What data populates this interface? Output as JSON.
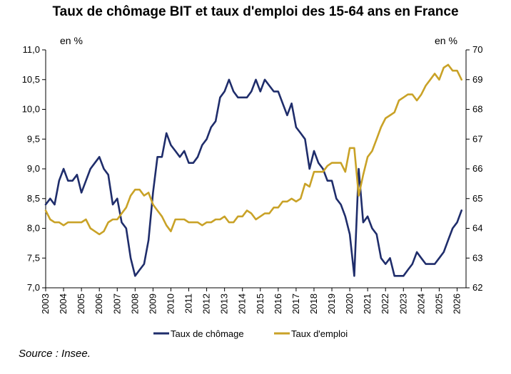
{
  "title": "Taux de chômage BIT et taux d'emploi des 15-64 ans en France",
  "source": "Source : Insee.",
  "chart_data": {
    "type": "line",
    "title": "Taux de chômage BIT et taux d'emploi des 15-64 ans en France",
    "left_axis": {
      "unit_label": "en %",
      "ylim": [
        7.0,
        11.0
      ],
      "ticks": [
        "7,0",
        "7,5",
        "8,0",
        "8,5",
        "9,0",
        "9,5",
        "10,0",
        "10,5",
        "11,0"
      ],
      "tick_values": [
        7.0,
        7.5,
        8.0,
        8.5,
        9.0,
        9.5,
        10.0,
        10.5,
        11.0
      ]
    },
    "right_axis": {
      "unit_label": "en %",
      "ylim": [
        62,
        70
      ],
      "ticks": [
        "62",
        "63",
        "64",
        "65",
        "66",
        "67",
        "68",
        "69",
        "70"
      ],
      "tick_values": [
        62,
        63,
        64,
        65,
        66,
        67,
        68,
        69,
        70
      ]
    },
    "x_axis": {
      "xlim": [
        2003,
        2026.5
      ],
      "ticks": [
        "2003",
        "2004",
        "2005",
        "2006",
        "2007",
        "2008",
        "2009",
        "2010",
        "2011",
        "2012",
        "2013",
        "2014",
        "2015",
        "2016",
        "2017",
        "2018",
        "2019",
        "2020",
        "2021",
        "2022",
        "2023",
        "2024",
        "2025",
        "2026"
      ],
      "tick_values": [
        2003,
        2004,
        2005,
        2006,
        2007,
        2008,
        2009,
        2010,
        2011,
        2012,
        2013,
        2014,
        2015,
        2016,
        2017,
        2018,
        2019,
        2020,
        2021,
        2022,
        2023,
        2024,
        2025,
        2026
      ]
    },
    "legend_position": "bottom",
    "grid": false,
    "series": [
      {
        "name": "Taux de chômage",
        "axis": "left",
        "color": "#1F2D6B",
        "x": [
          2003.0,
          2003.25,
          2003.5,
          2003.75,
          2004.0,
          2004.25,
          2004.5,
          2004.75,
          2005.0,
          2005.25,
          2005.5,
          2005.75,
          2006.0,
          2006.25,
          2006.5,
          2006.75,
          2007.0,
          2007.25,
          2007.5,
          2007.75,
          2008.0,
          2008.25,
          2008.5,
          2008.75,
          2009.0,
          2009.25,
          2009.5,
          2009.75,
          2010.0,
          2010.25,
          2010.5,
          2010.75,
          2011.0,
          2011.25,
          2011.5,
          2011.75,
          2012.0,
          2012.25,
          2012.5,
          2012.75,
          2013.0,
          2013.25,
          2013.5,
          2013.75,
          2014.0,
          2014.25,
          2014.5,
          2014.75,
          2015.0,
          2015.25,
          2015.5,
          2015.75,
          2016.0,
          2016.25,
          2016.5,
          2016.75,
          2017.0,
          2017.25,
          2017.5,
          2017.75,
          2018.0,
          2018.25,
          2018.5,
          2018.75,
          2019.0,
          2019.25,
          2019.5,
          2019.75,
          2020.0,
          2020.25,
          2020.5,
          2020.75,
          2021.0,
          2021.25,
          2021.5,
          2021.75,
          2022.0,
          2022.25,
          2022.5,
          2022.75,
          2023.0,
          2023.25,
          2023.5,
          2023.75,
          2024.0,
          2024.25,
          2024.5,
          2024.75,
          2025.0,
          2025.25,
          2025.5,
          2025.75,
          2026.0,
          2026.25
        ],
        "values": [
          8.4,
          8.5,
          8.4,
          8.8,
          9.0,
          8.8,
          8.8,
          8.9,
          8.6,
          8.8,
          9.0,
          9.1,
          9.2,
          9.0,
          8.9,
          8.4,
          8.5,
          8.1,
          8.0,
          7.5,
          7.2,
          7.3,
          7.4,
          7.8,
          8.6,
          9.2,
          9.2,
          9.6,
          9.4,
          9.3,
          9.2,
          9.3,
          9.1,
          9.1,
          9.2,
          9.4,
          9.5,
          9.7,
          9.8,
          10.2,
          10.3,
          10.5,
          10.3,
          10.2,
          10.2,
          10.2,
          10.3,
          10.5,
          10.3,
          10.5,
          10.4,
          10.3,
          10.3,
          10.1,
          9.9,
          10.1,
          9.7,
          9.6,
          9.5,
          9.0,
          9.3,
          9.1,
          9.0,
          8.8,
          8.8,
          8.5,
          8.4,
          8.2,
          7.9,
          7.2,
          9.0,
          8.1,
          8.2,
          8.0,
          7.9,
          7.5,
          7.4,
          7.5,
          7.2,
          7.2,
          7.2,
          7.3,
          7.4,
          7.6,
          7.5,
          7.4,
          7.4,
          7.4,
          7.5,
          7.6,
          7.8,
          8.0,
          8.1,
          8.3
        ]
      },
      {
        "name": "Taux d'emploi",
        "axis": "right",
        "color": "#C9A227",
        "x": [
          2003.0,
          2003.25,
          2003.5,
          2003.75,
          2004.0,
          2004.25,
          2004.5,
          2004.75,
          2005.0,
          2005.25,
          2005.5,
          2005.75,
          2006.0,
          2006.25,
          2006.5,
          2006.75,
          2007.0,
          2007.25,
          2007.5,
          2007.75,
          2008.0,
          2008.25,
          2008.5,
          2008.75,
          2009.0,
          2009.25,
          2009.5,
          2009.75,
          2010.0,
          2010.25,
          2010.5,
          2010.75,
          2011.0,
          2011.25,
          2011.5,
          2011.75,
          2012.0,
          2012.25,
          2012.5,
          2012.75,
          2013.0,
          2013.25,
          2013.5,
          2013.75,
          2014.0,
          2014.25,
          2014.5,
          2014.75,
          2015.0,
          2015.25,
          2015.5,
          2015.75,
          2016.0,
          2016.25,
          2016.5,
          2016.75,
          2017.0,
          2017.25,
          2017.5,
          2017.75,
          2018.0,
          2018.25,
          2018.5,
          2018.75,
          2019.0,
          2019.25,
          2019.5,
          2019.75,
          2020.0,
          2020.25,
          2020.5,
          2020.75,
          2021.0,
          2021.25,
          2021.5,
          2021.75,
          2022.0,
          2022.25,
          2022.5,
          2022.75,
          2023.0,
          2023.25,
          2023.5,
          2023.75,
          2024.0,
          2024.25,
          2024.5,
          2024.75,
          2025.0,
          2025.25,
          2025.5,
          2025.75,
          2026.0,
          2026.25
        ],
        "values": [
          64.6,
          64.3,
          64.2,
          64.2,
          64.1,
          64.2,
          64.2,
          64.2,
          64.2,
          64.3,
          64.0,
          63.9,
          63.8,
          63.9,
          64.2,
          64.3,
          64.3,
          64.5,
          64.7,
          65.1,
          65.3,
          65.3,
          65.1,
          65.2,
          64.8,
          64.6,
          64.4,
          64.1,
          63.9,
          64.3,
          64.3,
          64.3,
          64.2,
          64.2,
          64.2,
          64.1,
          64.2,
          64.2,
          64.3,
          64.3,
          64.4,
          64.2,
          64.2,
          64.4,
          64.4,
          64.6,
          64.5,
          64.3,
          64.4,
          64.5,
          64.5,
          64.7,
          64.7,
          64.9,
          64.9,
          65.0,
          64.9,
          65.0,
          65.5,
          65.4,
          65.9,
          65.9,
          65.9,
          66.1,
          66.2,
          66.2,
          66.2,
          65.9,
          66.7,
          66.7,
          65.1,
          65.8,
          66.4,
          66.6,
          67.0,
          67.4,
          67.7,
          67.8,
          67.9,
          68.3,
          68.4,
          68.5,
          68.5,
          68.3,
          68.5,
          68.8,
          69.0,
          69.2,
          69.0,
          69.4,
          69.5,
          69.3,
          69.3,
          69.0
        ]
      }
    ]
  }
}
